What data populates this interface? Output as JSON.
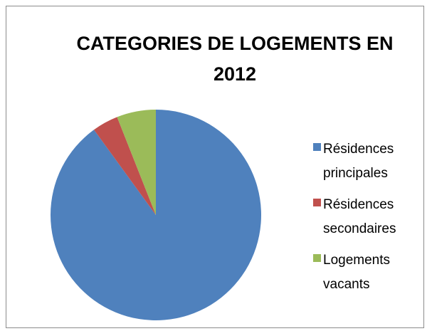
{
  "chart_data": {
    "type": "pie",
    "title": "CATEGORIES DE LOGEMENTS EN 2012",
    "categories": [
      "Résidences principales",
      "Résidences secondaires",
      "Logements vacants"
    ],
    "values": [
      90,
      4,
      6
    ],
    "colors": [
      "#4f81bd",
      "#c0504d",
      "#9bbb59"
    ],
    "legend": "right"
  }
}
